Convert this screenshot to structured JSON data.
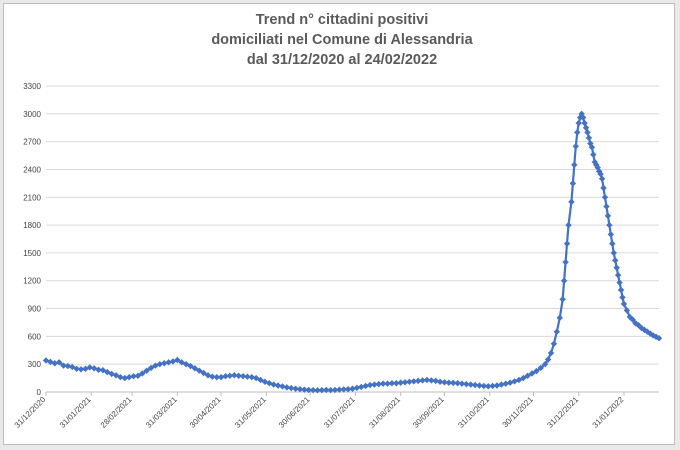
{
  "chart_data": {
    "type": "line",
    "title_lines": [
      "Trend n° cittadini positivi",
      "domiciliati nel Comune di Alessandria",
      "dal 31/12/2020 al 24/02/2022"
    ],
    "xlabel": "",
    "ylabel": "",
    "ylim": [
      0,
      3300
    ],
    "yticks": [
      0,
      300,
      600,
      900,
      1200,
      1500,
      1800,
      2100,
      2400,
      2700,
      3000,
      3300
    ],
    "xlim": [
      "2020-12-31",
      "2022-02-24"
    ],
    "xticks": [
      "31/12/2020",
      "31/01/2021",
      "28/02/2021",
      "31/03/2021",
      "30/04/2021",
      "31/05/2021",
      "30/06/2021",
      "31/07/2021",
      "31/08/2021",
      "30/09/2021",
      "31/10/2021",
      "30/11/2021",
      "31/12/2021",
      "31/01/2022"
    ],
    "grid": true,
    "legend": "none",
    "series": [
      {
        "color": "#4472c4",
        "marker": "diamond",
        "points": [
          [
            "2020-12-31",
            340
          ],
          [
            "2021-01-03",
            325
          ],
          [
            "2021-01-06",
            310
          ],
          [
            "2021-01-09",
            320
          ],
          [
            "2021-01-12",
            285
          ],
          [
            "2021-01-15",
            280
          ],
          [
            "2021-01-18",
            270
          ],
          [
            "2021-01-21",
            250
          ],
          [
            "2021-01-24",
            245
          ],
          [
            "2021-01-27",
            250
          ],
          [
            "2021-01-30",
            265
          ],
          [
            "2021-02-02",
            255
          ],
          [
            "2021-02-05",
            240
          ],
          [
            "2021-02-08",
            235
          ],
          [
            "2021-02-11",
            215
          ],
          [
            "2021-02-14",
            195
          ],
          [
            "2021-02-17",
            180
          ],
          [
            "2021-02-20",
            160
          ],
          [
            "2021-02-23",
            150
          ],
          [
            "2021-02-26",
            160
          ],
          [
            "2021-03-01",
            170
          ],
          [
            "2021-03-04",
            175
          ],
          [
            "2021-03-07",
            200
          ],
          [
            "2021-03-10",
            230
          ],
          [
            "2021-03-13",
            260
          ],
          [
            "2021-03-16",
            285
          ],
          [
            "2021-03-19",
            300
          ],
          [
            "2021-03-22",
            310
          ],
          [
            "2021-03-25",
            320
          ],
          [
            "2021-03-28",
            330
          ],
          [
            "2021-03-31",
            345
          ],
          [
            "2021-04-03",
            320
          ],
          [
            "2021-04-06",
            300
          ],
          [
            "2021-04-09",
            280
          ],
          [
            "2021-04-12",
            255
          ],
          [
            "2021-04-15",
            230
          ],
          [
            "2021-04-18",
            205
          ],
          [
            "2021-04-21",
            180
          ],
          [
            "2021-04-24",
            165
          ],
          [
            "2021-04-27",
            160
          ],
          [
            "2021-04-30",
            160
          ],
          [
            "2021-05-03",
            170
          ],
          [
            "2021-05-06",
            175
          ],
          [
            "2021-05-09",
            180
          ],
          [
            "2021-05-12",
            175
          ],
          [
            "2021-05-15",
            170
          ],
          [
            "2021-05-18",
            165
          ],
          [
            "2021-05-21",
            160
          ],
          [
            "2021-05-24",
            150
          ],
          [
            "2021-05-27",
            130
          ],
          [
            "2021-05-30",
            110
          ],
          [
            "2021-06-02",
            95
          ],
          [
            "2021-06-05",
            80
          ],
          [
            "2021-06-08",
            70
          ],
          [
            "2021-06-11",
            60
          ],
          [
            "2021-06-14",
            50
          ],
          [
            "2021-06-17",
            42
          ],
          [
            "2021-06-20",
            35
          ],
          [
            "2021-06-23",
            30
          ],
          [
            "2021-06-26",
            25
          ],
          [
            "2021-06-29",
            22
          ],
          [
            "2021-07-02",
            20
          ],
          [
            "2021-07-05",
            18
          ],
          [
            "2021-07-08",
            20
          ],
          [
            "2021-07-11",
            22
          ],
          [
            "2021-07-14",
            20
          ],
          [
            "2021-07-17",
            22
          ],
          [
            "2021-07-20",
            25
          ],
          [
            "2021-07-23",
            28
          ],
          [
            "2021-07-26",
            30
          ],
          [
            "2021-07-29",
            35
          ],
          [
            "2021-08-01",
            45
          ],
          [
            "2021-08-04",
            55
          ],
          [
            "2021-08-07",
            65
          ],
          [
            "2021-08-10",
            75
          ],
          [
            "2021-08-13",
            80
          ],
          [
            "2021-08-16",
            85
          ],
          [
            "2021-08-19",
            90
          ],
          [
            "2021-08-22",
            90
          ],
          [
            "2021-08-25",
            95
          ],
          [
            "2021-08-28",
            95
          ],
          [
            "2021-08-31",
            100
          ],
          [
            "2021-09-03",
            105
          ],
          [
            "2021-09-06",
            110
          ],
          [
            "2021-09-09",
            115
          ],
          [
            "2021-09-12",
            120
          ],
          [
            "2021-09-15",
            125
          ],
          [
            "2021-09-18",
            130
          ],
          [
            "2021-09-21",
            125
          ],
          [
            "2021-09-24",
            120
          ],
          [
            "2021-09-27",
            110
          ],
          [
            "2021-09-30",
            105
          ],
          [
            "2021-10-03",
            100
          ],
          [
            "2021-10-06",
            98
          ],
          [
            "2021-10-09",
            95
          ],
          [
            "2021-10-12",
            90
          ],
          [
            "2021-10-15",
            85
          ],
          [
            "2021-10-18",
            80
          ],
          [
            "2021-10-21",
            75
          ],
          [
            "2021-10-24",
            70
          ],
          [
            "2021-10-27",
            65
          ],
          [
            "2021-10-30",
            62
          ],
          [
            "2021-11-02",
            65
          ],
          [
            "2021-11-05",
            70
          ],
          [
            "2021-11-08",
            80
          ],
          [
            "2021-11-11",
            90
          ],
          [
            "2021-11-14",
            100
          ],
          [
            "2021-11-17",
            115
          ],
          [
            "2021-11-20",
            130
          ],
          [
            "2021-11-23",
            150
          ],
          [
            "2021-11-26",
            175
          ],
          [
            "2021-11-29",
            200
          ],
          [
            "2021-12-02",
            225
          ],
          [
            "2021-12-05",
            260
          ],
          [
            "2021-12-08",
            300
          ],
          [
            "2021-12-10",
            350
          ],
          [
            "2021-12-12",
            420
          ],
          [
            "2021-12-14",
            520
          ],
          [
            "2021-12-16",
            650
          ],
          [
            "2021-12-18",
            800
          ],
          [
            "2021-12-20",
            1000
          ],
          [
            "2021-12-21",
            1200
          ],
          [
            "2021-12-22",
            1400
          ],
          [
            "2021-12-23",
            1600
          ],
          [
            "2021-12-24",
            1800
          ],
          [
            "2021-12-26",
            2050
          ],
          [
            "2021-12-27",
            2250
          ],
          [
            "2021-12-28",
            2450
          ],
          [
            "2021-12-29",
            2650
          ],
          [
            "2021-12-30",
            2800
          ],
          [
            "2021-12-31",
            2900
          ],
          [
            "2022-01-01",
            2960
          ],
          [
            "2022-01-02",
            3000
          ],
          [
            "2022-01-03",
            2960
          ],
          [
            "2022-01-04",
            2900
          ],
          [
            "2022-01-05",
            2850
          ],
          [
            "2022-01-06",
            2800
          ],
          [
            "2022-01-07",
            2740
          ],
          [
            "2022-01-08",
            2680
          ],
          [
            "2022-01-09",
            2640
          ],
          [
            "2022-01-10",
            2560
          ],
          [
            "2022-01-11",
            2480
          ],
          [
            "2022-01-12",
            2450
          ],
          [
            "2022-01-13",
            2420
          ],
          [
            "2022-01-14",
            2380
          ],
          [
            "2022-01-15",
            2350
          ],
          [
            "2022-01-16",
            2300
          ],
          [
            "2022-01-17",
            2200
          ],
          [
            "2022-01-18",
            2100
          ],
          [
            "2022-01-19",
            2000
          ],
          [
            "2022-01-20",
            1900
          ],
          [
            "2022-01-21",
            1800
          ],
          [
            "2022-01-22",
            1700
          ],
          [
            "2022-01-23",
            1600
          ],
          [
            "2022-01-24",
            1500
          ],
          [
            "2022-01-25",
            1420
          ],
          [
            "2022-01-26",
            1340
          ],
          [
            "2022-01-27",
            1260
          ],
          [
            "2022-01-28",
            1180
          ],
          [
            "2022-01-29",
            1100
          ],
          [
            "2022-01-30",
            1020
          ],
          [
            "2022-01-31",
            950
          ],
          [
            "2022-02-02",
            880
          ],
          [
            "2022-02-04",
            810
          ],
          [
            "2022-02-06",
            780
          ],
          [
            "2022-02-08",
            740
          ],
          [
            "2022-02-10",
            720
          ],
          [
            "2022-02-12",
            690
          ],
          [
            "2022-02-14",
            670
          ],
          [
            "2022-02-16",
            650
          ],
          [
            "2022-02-18",
            630
          ],
          [
            "2022-02-20",
            610
          ],
          [
            "2022-02-22",
            595
          ],
          [
            "2022-02-24",
            580
          ]
        ]
      }
    ]
  }
}
